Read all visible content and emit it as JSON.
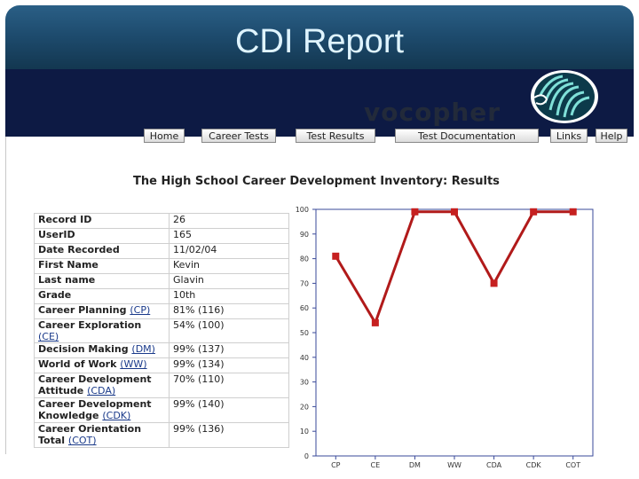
{
  "slide": {
    "title": "CDI Report"
  },
  "brand": {
    "logo_text": "vocopher"
  },
  "nav": {
    "items": [
      {
        "label": "Home"
      },
      {
        "label": "Career Tests"
      },
      {
        "label": "Test Results"
      },
      {
        "label": "Test Documentation"
      },
      {
        "label": "Links"
      },
      {
        "label": "Help"
      }
    ]
  },
  "report": {
    "title": "The High School Career Development Inventory: Results",
    "rows": [
      {
        "label": "Record ID",
        "value": "26"
      },
      {
        "label": "UserID",
        "value": "165"
      },
      {
        "label": "Date Recorded",
        "value": "11/02/04"
      },
      {
        "label": "First Name",
        "value": "Kevin"
      },
      {
        "label": "Last name",
        "value": "Glavin"
      },
      {
        "label": "Grade",
        "value": "10th"
      },
      {
        "label": "Career Planning",
        "abbr": "(CP)",
        "value": "81% (116)"
      },
      {
        "label": "Career Exploration",
        "abbr": "(CE)",
        "value": "54% (100)"
      },
      {
        "label": "Decision Making",
        "abbr": "(DM)",
        "value": "99% (137)"
      },
      {
        "label": "World of Work",
        "abbr": "(WW)",
        "value": "99% (134)"
      },
      {
        "label": "Career Development Attitude",
        "abbr": "(CDA)",
        "value": "70% (110)"
      },
      {
        "label": "Career Development Knowledge",
        "abbr": "(CDK)",
        "value": "99% (140)"
      },
      {
        "label": "Career Orientation Total",
        "abbr": "(COT)",
        "value": "99% (136)"
      }
    ]
  },
  "chart_data": {
    "type": "line",
    "categories": [
      "CP",
      "CE",
      "DM",
      "WW",
      "CDA",
      "CDK",
      "COT"
    ],
    "series": [
      {
        "values": [
          81,
          54,
          99,
          99,
          70,
          99,
          99
        ]
      }
    ],
    "ylim": [
      0,
      100
    ],
    "yticks": [
      "0",
      "10",
      "20",
      "30",
      "40",
      "50",
      "60",
      "70",
      "80",
      "90",
      "100"
    ],
    "line_color": "#b11a1a",
    "marker_color": "#c62020",
    "grid": false
  }
}
